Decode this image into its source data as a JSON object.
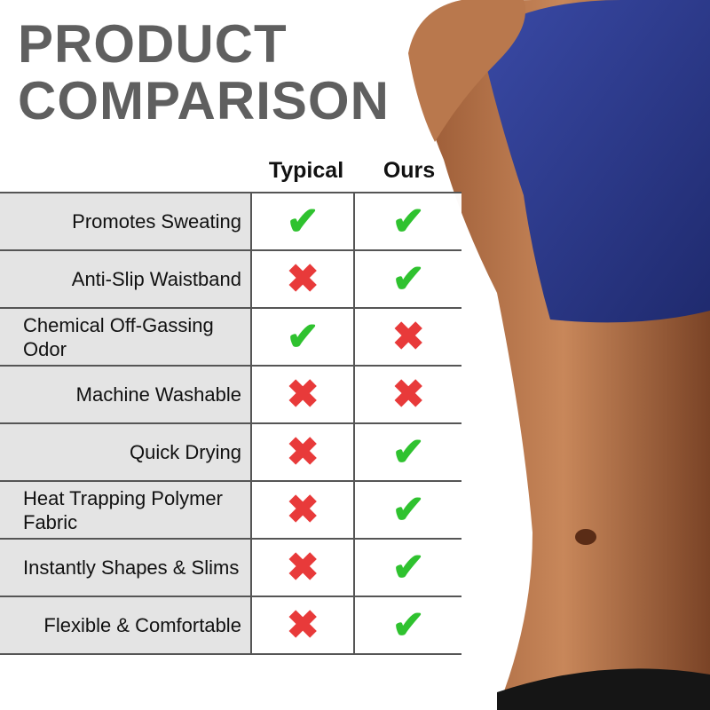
{
  "title": [
    "PRODUCT",
    "COMPARISON"
  ],
  "columns": [
    "Typical",
    "Ours"
  ],
  "rows": [
    {
      "label": "Promotes Sweating",
      "typical": true,
      "ours": true
    },
    {
      "label": "Anti-Slip Waistband",
      "typical": false,
      "ours": true
    },
    {
      "label": "Chemical Off-Gassing Odor",
      "typical": true,
      "ours": false
    },
    {
      "label": "Machine Washable",
      "typical": false,
      "ours": false
    },
    {
      "label": "Quick Drying",
      "typical": false,
      "ours": true
    },
    {
      "label": "Heat Trapping Polymer Fabric",
      "typical": false,
      "ours": true
    },
    {
      "label": "Instantly Shapes & Slims",
      "typical": false,
      "ours": true
    },
    {
      "label": "Flexible & Comfortable",
      "typical": false,
      "ours": true
    }
  ],
  "icons": {
    "yes": "check-icon",
    "no": "cross-icon"
  },
  "colors": {
    "check": "#2fc22f",
    "cross": "#e83a3a",
    "title": "#5f5f5f",
    "shirt": "#2e3d8f"
  }
}
